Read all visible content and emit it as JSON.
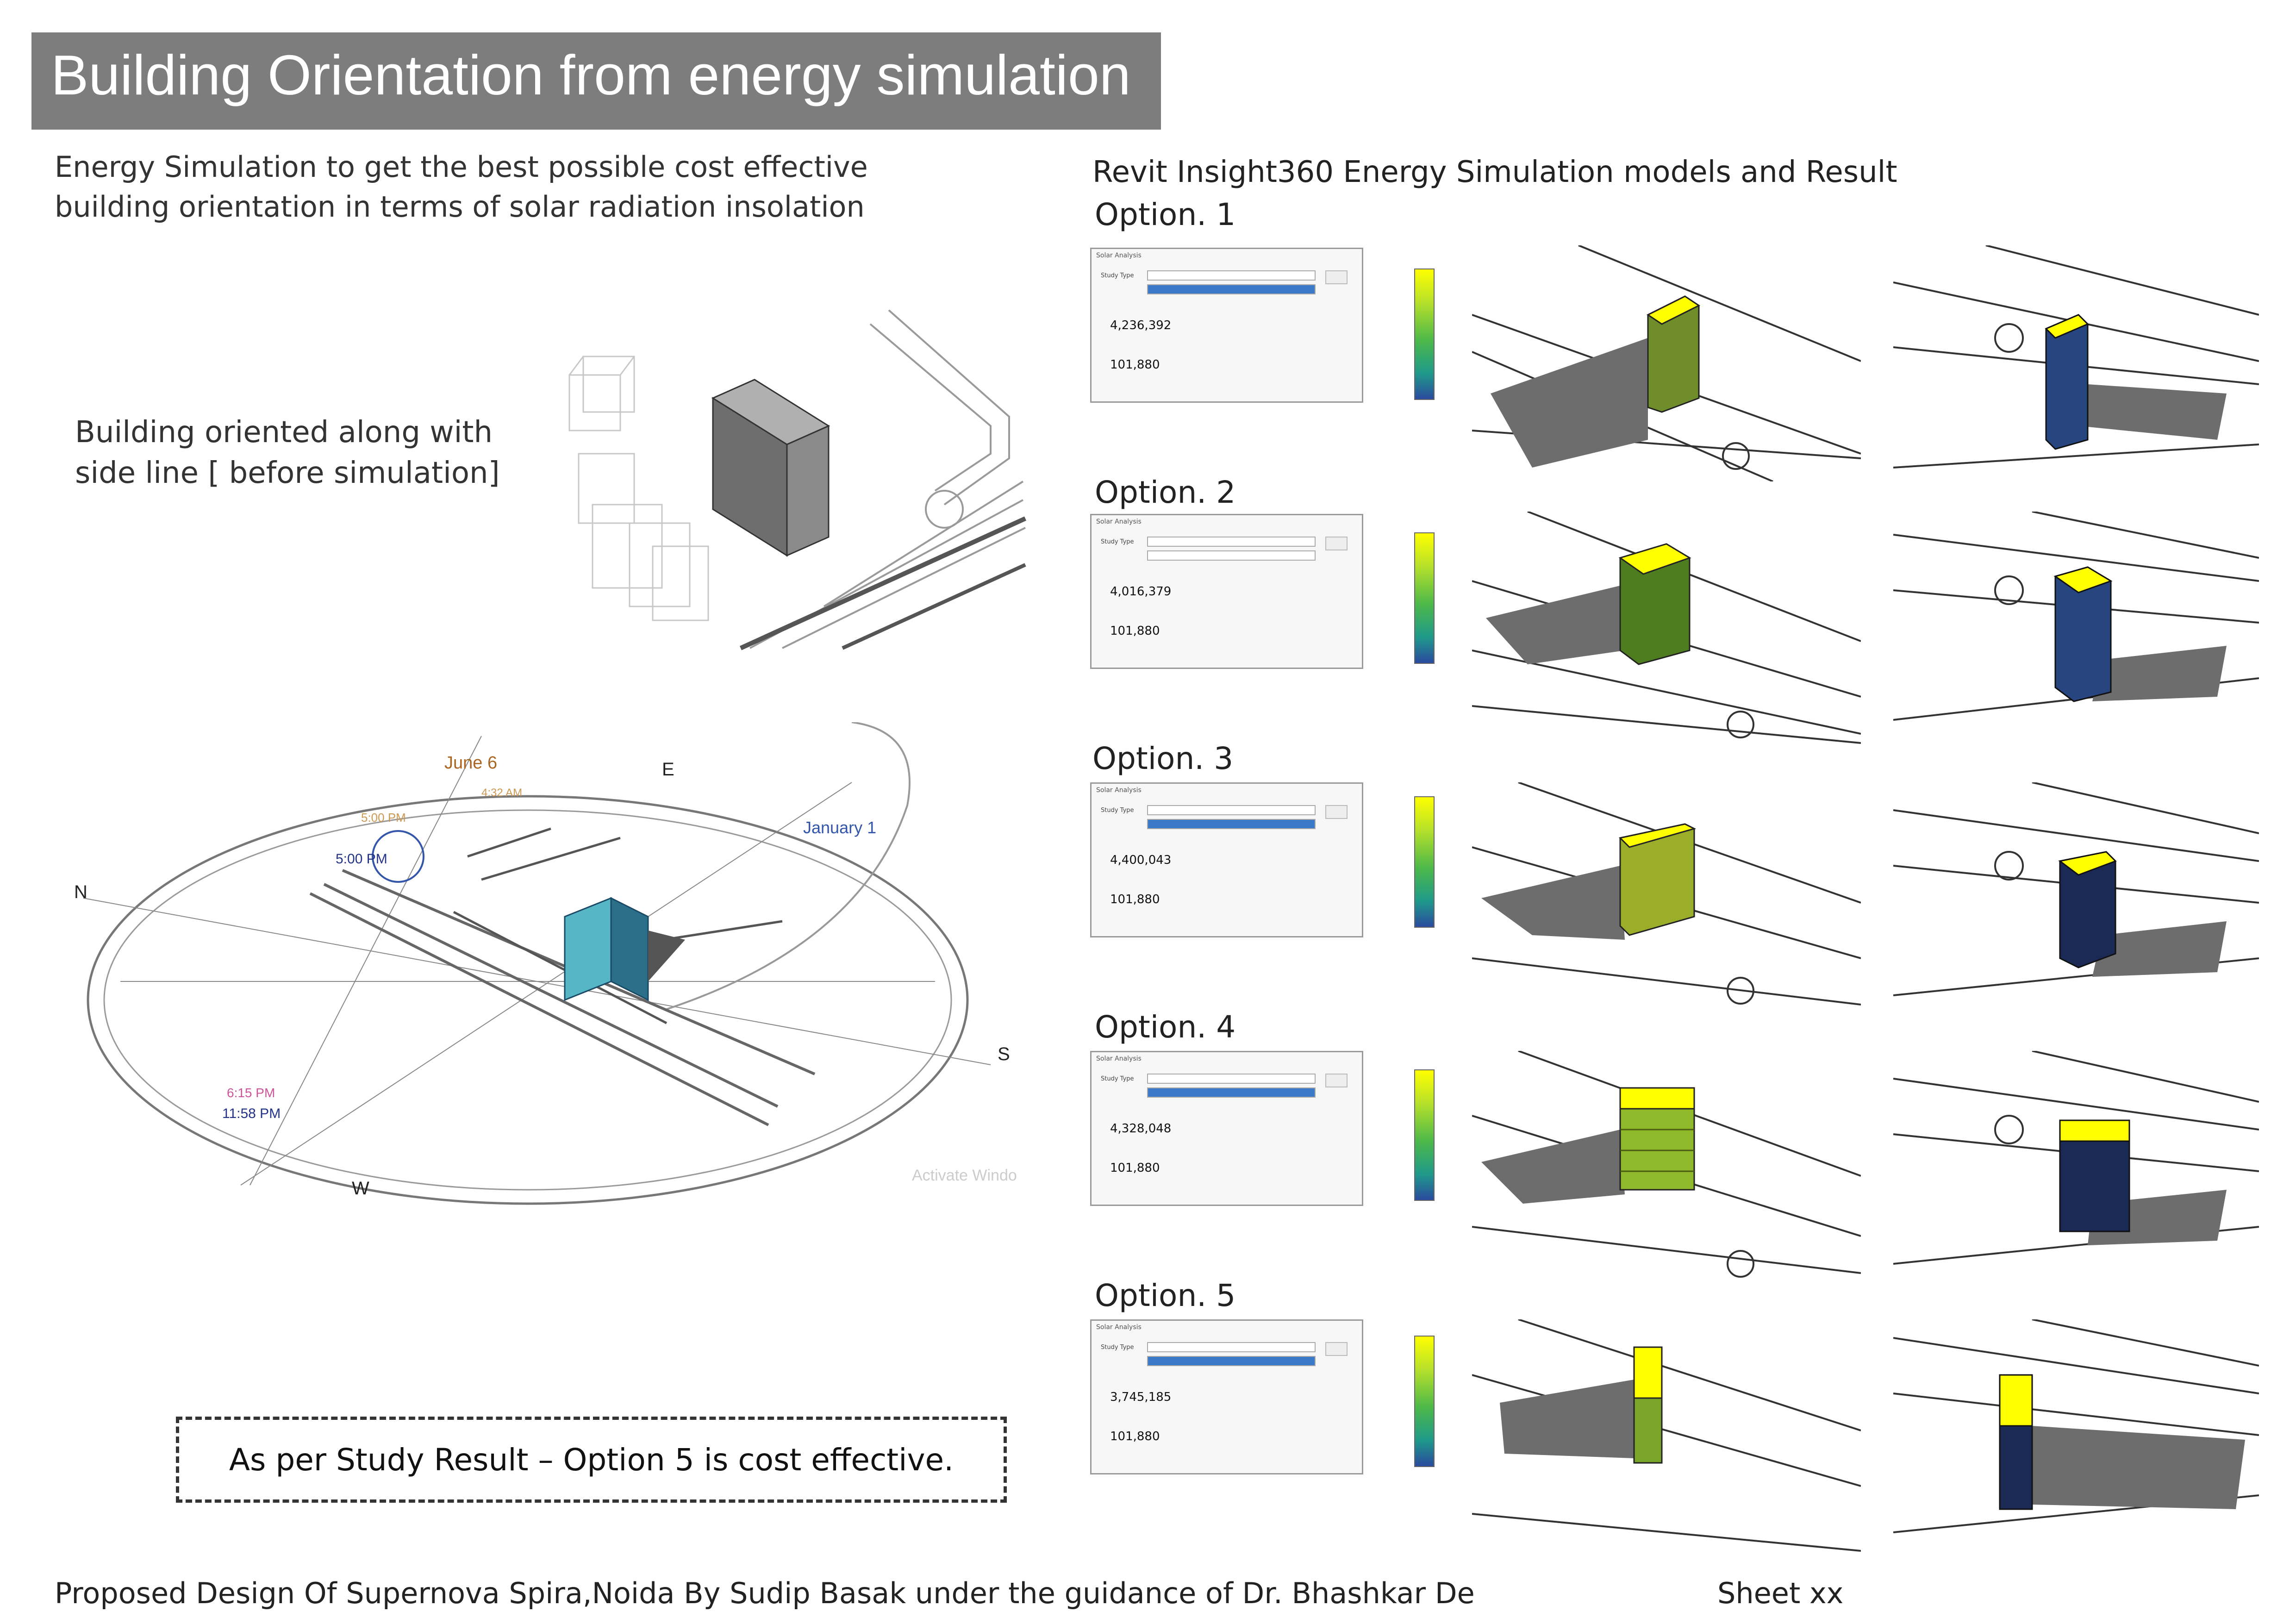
{
  "title": "Building Orientation from energy simulation",
  "intro": {
    "line1": "Energy Simulation to get the best possible cost effective",
    "line2": "building orientation in terms of solar radiation insolation"
  },
  "left_note": {
    "line1": "Building oriented along with",
    "line2": "side line  [ before simulation]"
  },
  "right_heading": "Revit Insight360  Energy Simulation models and Result",
  "options": [
    {
      "label": "Option. 1",
      "insolation": "4,236,392",
      "area": "101,880"
    },
    {
      "label": "Option. 2",
      "insolation": "4,016,379",
      "area": "101,880"
    },
    {
      "label": "Option. 3",
      "insolation": "4,400,043",
      "area": "101,880"
    },
    {
      "label": "Option. 4",
      "insolation": "4,328,048",
      "area": "101,880"
    },
    {
      "label": "Option. 5",
      "insolation": "3,745,185",
      "area": "101,880"
    }
  ],
  "sun_path": {
    "compass": {
      "n": "N",
      "e": "E",
      "s": "S",
      "w": "W"
    },
    "labels": {
      "june": "June 6",
      "january": "January 1",
      "time1": "5:00 PM",
      "time2": "5:00 PM",
      "time3": "4:32 AM",
      "time4": "6:15 PM",
      "time5": "11:58 PM"
    },
    "watermark": "Activate Windo"
  },
  "result": "As per Study Result  – Option 5 is cost effective.",
  "footer": "Proposed Design Of Supernova Spira,Noida By Sudip Basak under the guidance of Dr. Bhashkar De",
  "sheet": "Sheet xx",
  "colors": {
    "title_bg": "#7d7d7d",
    "insolation_high": "#ffff00",
    "insolation_mid": "#7aa52a",
    "insolation_low": "#1b2a55",
    "model_blue": "#27457f",
    "shadow": "#6d6d6d"
  }
}
